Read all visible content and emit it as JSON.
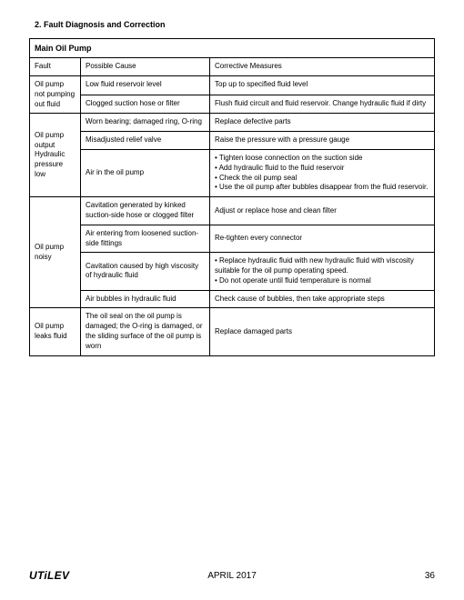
{
  "heading": "2. Fault Diagnosis and Correction",
  "table": {
    "title": "Main Oil Pump",
    "headers": {
      "fault": "Fault",
      "cause": "Possible Cause",
      "measure": "Corrective Measures"
    },
    "groups": [
      {
        "fault": "Oil pump not pumping out fluid",
        "rows": [
          {
            "cause": "Low fluid reservoir level",
            "measure": "Top up to specified fluid level"
          },
          {
            "cause": "Clogged suction hose or filter",
            "measure": "Flush fluid circuit and fluid reservoir. Change hydraulic fluid if dirty"
          }
        ]
      },
      {
        "fault": "Oil pump output Hydraulic pressure low",
        "rows": [
          {
            "cause": "Worn bearing; damaged ring, O-ring",
            "measure": "Replace defective parts"
          },
          {
            "cause": "Misadjusted relief valve",
            "measure": "Raise the pressure with a pressure gauge"
          },
          {
            "cause": "Air in the oil pump",
            "measure": "• Tighten loose connection on the suction side\n• Add hydraulic fluid to the fluid reservoir\n• Check the oil pump seal\n• Use the oil pump after bubbles disappear from the fluid reservoir."
          }
        ]
      },
      {
        "fault": "Oil pump noisy",
        "rows": [
          {
            "cause": "Cavitation generated by kinked suction-side hose or clogged filter",
            "measure": "Adjust or replace hose and clean filter"
          },
          {
            "cause": "Air entering from loosened suction-side fittings",
            "measure": "Re-tighten every connector"
          },
          {
            "cause": "Cavitation caused by high viscosity of hydraulic fluid",
            "measure": "• Replace hydraulic fluid with new hydraulic fluid with viscosity suitable for the oil pump operating speed.\n• Do not operate until fluid temperature is normal"
          },
          {
            "cause": "Air bubbles in hydraulic fluid",
            "measure": "Check cause of bubbles, then take appropriate steps"
          }
        ]
      },
      {
        "fault": "Oil pump leaks fluid",
        "rows": [
          {
            "cause": "The oil seal on the oil pump is damaged; the O-ring is damaged, or the sliding surface of the oil pump is worn",
            "measure": "Replace damaged parts"
          }
        ]
      }
    ]
  },
  "footer": {
    "logo": "UTiLEV",
    "date": "APRIL 2017",
    "page": "36"
  }
}
